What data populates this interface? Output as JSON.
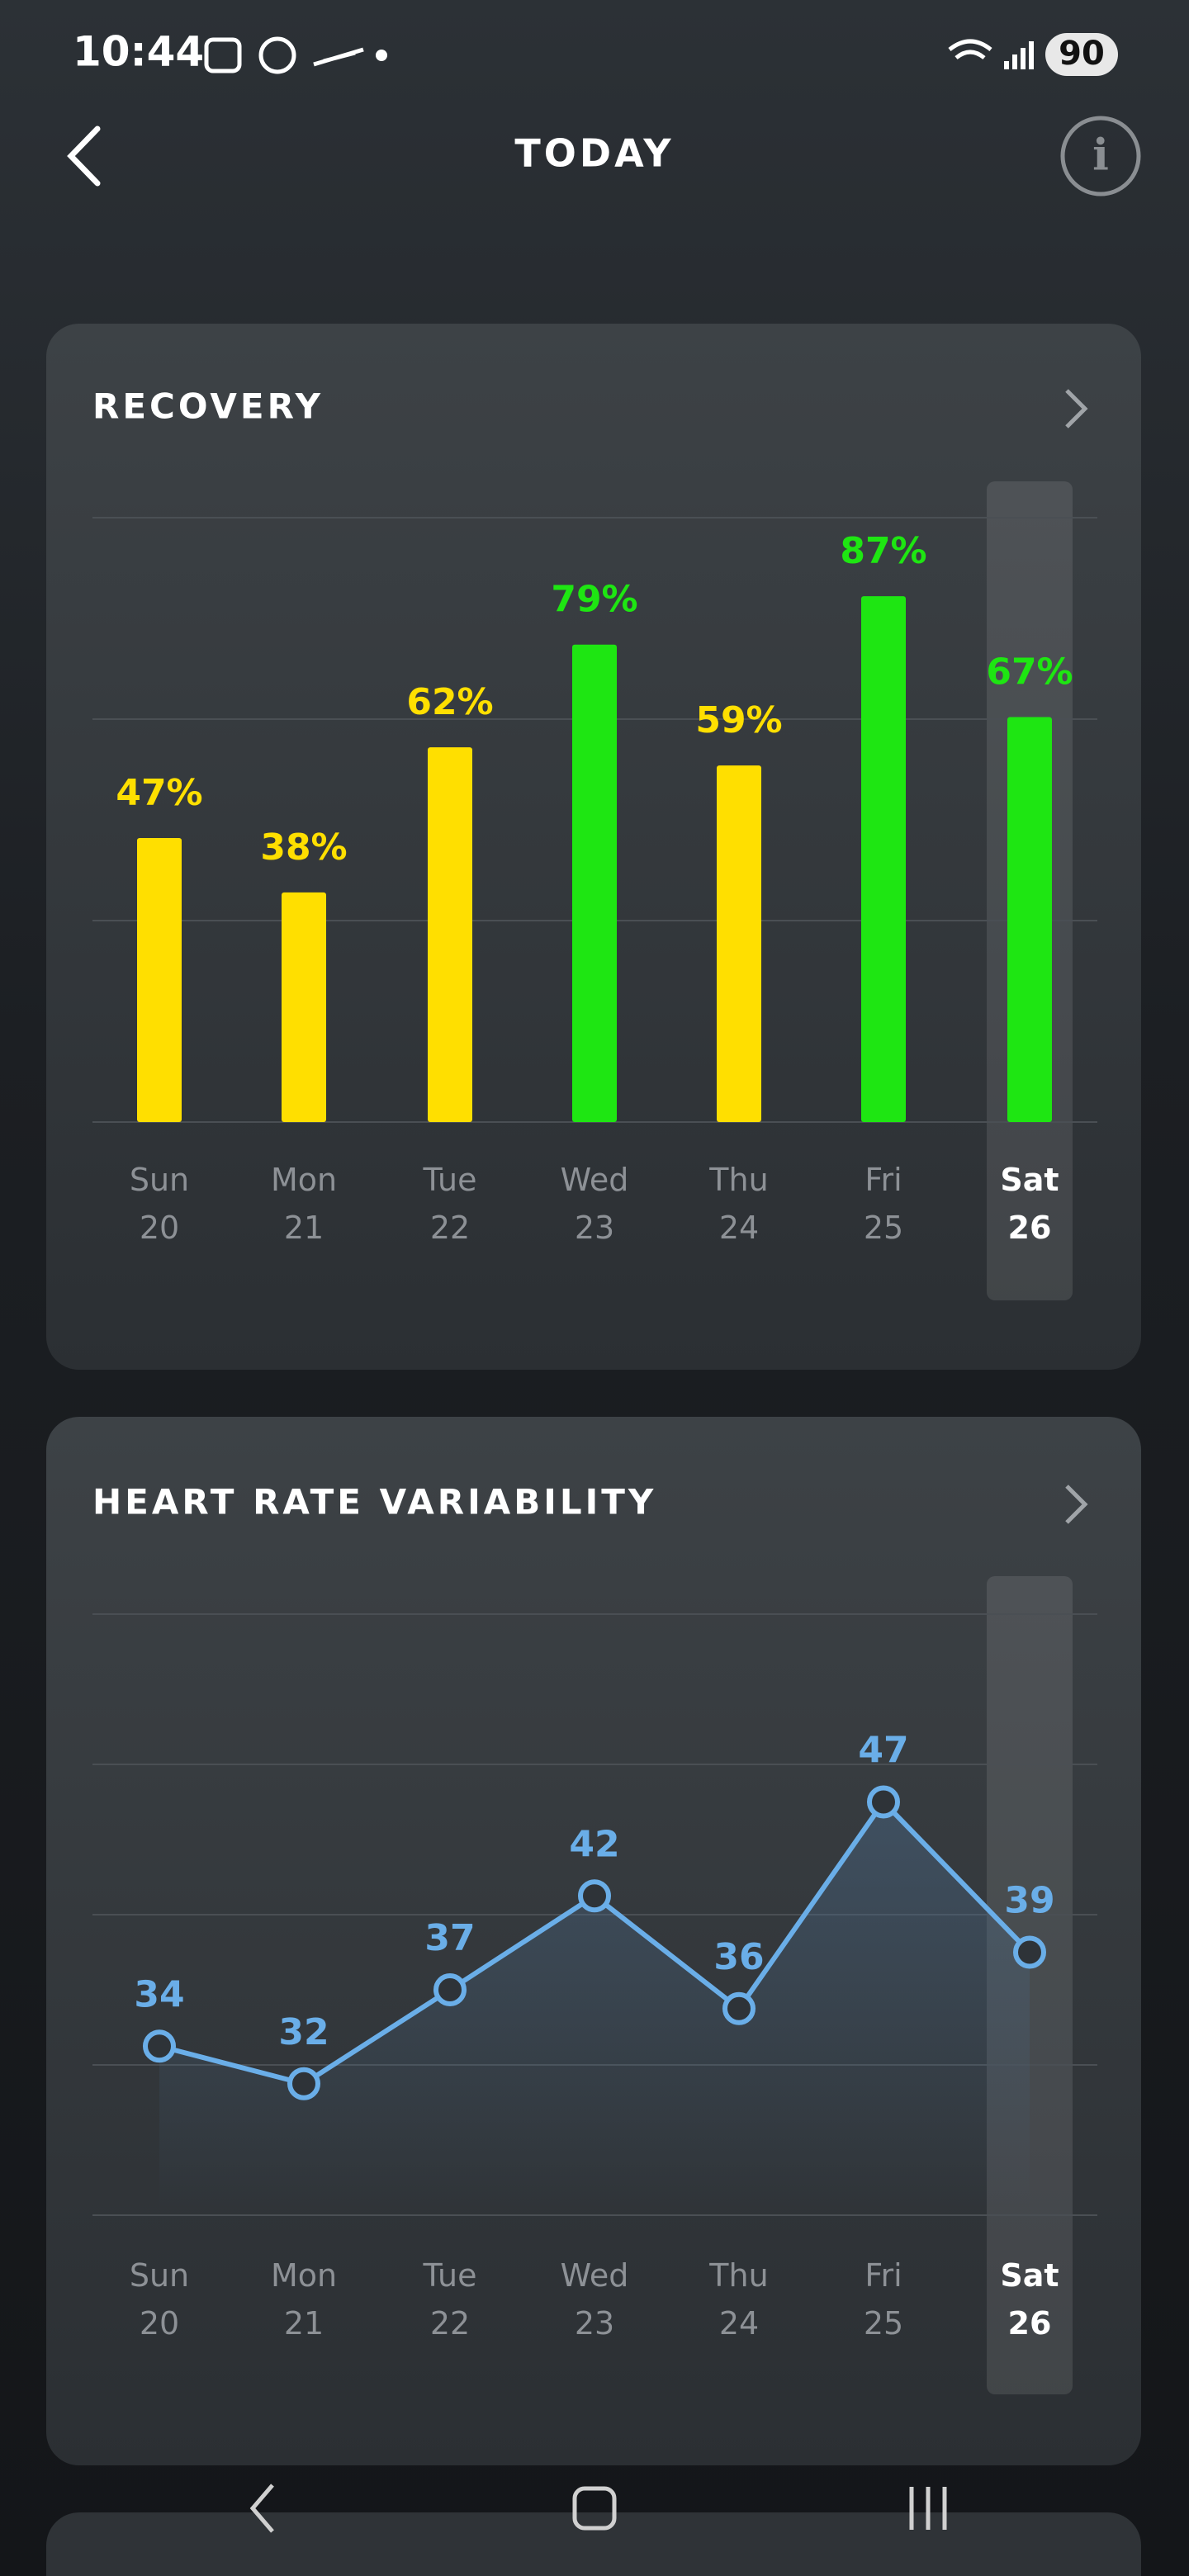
{
  "status_bar": {
    "time": "10:44",
    "battery": "90"
  },
  "header": {
    "title": "TODAY"
  },
  "chart_data": [
    {
      "type": "bar",
      "title": "RECOVERY",
      "categories": [
        "Sun\n20",
        "Mon\n21",
        "Tue\n22",
        "Wed\n23",
        "Thu\n24",
        "Fri\n25",
        "Sat\n26"
      ],
      "values": [
        47,
        38,
        62,
        79,
        59,
        87,
        67
      ],
      "value_labels": [
        "47%",
        "38%",
        "62%",
        "79%",
        "59%",
        "87%",
        "67%"
      ],
      "colors": [
        "#ffdf00",
        "#ffdf00",
        "#ffdf00",
        "#1ee612",
        "#ffdf00",
        "#1ee612",
        "#1ee612"
      ],
      "ylim": [
        0,
        100
      ]
    },
    {
      "type": "line",
      "title": "HEART RATE VARIABILITY",
      "categories": [
        "Sun\n20",
        "Mon\n21",
        "Tue\n22",
        "Wed\n23",
        "Thu\n24",
        "Fri\n25",
        "Sat\n26"
      ],
      "values": [
        34,
        32,
        37,
        42,
        36,
        47,
        39
      ],
      "color": "#6aaee8",
      "ylim": [
        25,
        57
      ]
    }
  ]
}
